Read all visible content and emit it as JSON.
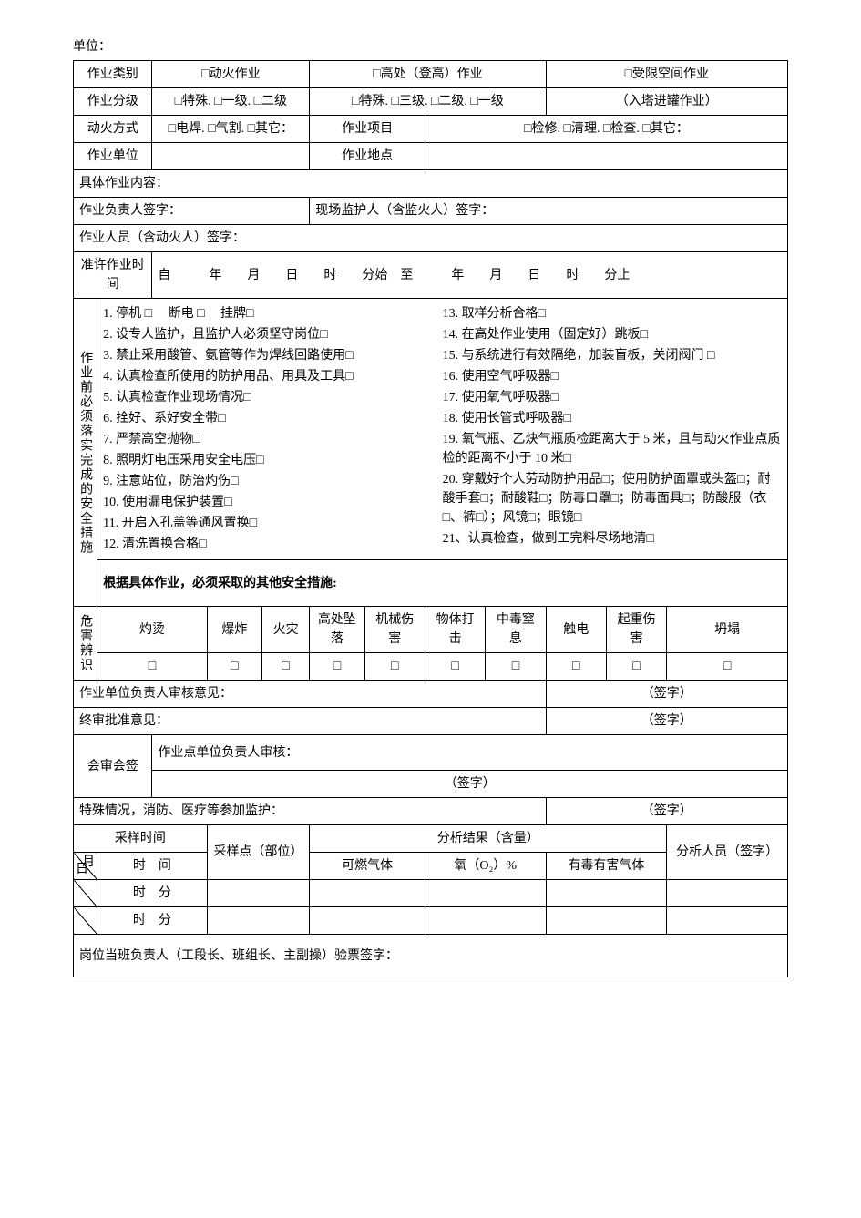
{
  "header": {
    "unit_label": "单位："
  },
  "row_type": {
    "label": "作业类别",
    "opt1": "□动火作业",
    "opt2": "□高处（登高）作业",
    "opt3": "□受限空间作业"
  },
  "row_grade": {
    "label": "作业分级",
    "opt1": "□特殊. □一级. □二级",
    "opt2": "□特殊. □三级. □二级. □一级",
    "opt3": "（入塔进罐作业）"
  },
  "row_fire": {
    "label": "动火方式",
    "opt1": "□电焊. □气割. □其它：",
    "proj_label": "作业项目",
    "proj_opts": "□检修. □清理. □检查. □其它："
  },
  "row_unit": {
    "label": "作业单位",
    "place_label": "作业地点"
  },
  "row_content": {
    "label": "具体作业内容："
  },
  "row_leader": {
    "label": "作业负责人签字：",
    "supervisor": "现场监护人（含监火人）签字："
  },
  "row_workers": {
    "label": "作业人员（含动火人）签字："
  },
  "row_time": {
    "label": "准许作业时间",
    "text": "自　　　年　　月　　日　　时　　分始　至　　　年　　月　　日　　时　　分止"
  },
  "measures": {
    "side_label": "作业前必须落实完成的安全措施",
    "left": [
      "1. 停机 □　 断电 □　 挂牌□",
      "2. 设专人监护，且监护人必须坚守岗位□",
      "3. 禁止采用酸管、氨管等作为焊线回路使用□",
      "4. 认真检查所使用的防护用品、用具及工具□",
      "5. 认真检查作业现场情况□",
      "6. 拴好、系好安全带□",
      "7. 严禁高空抛物□",
      "8. 照明灯电压采用安全电压□",
      "9. 注意站位，防治灼伤□",
      "10. 使用漏电保护装置□",
      "11. 开启入孔盖等通风置换□",
      "12. 清洗置换合格□"
    ],
    "right": [
      "13. 取样分析合格□",
      "14. 在高处作业使用（固定好）跳板□",
      "15. 与系统进行有效隔绝，加装盲板，关闭阀门 □",
      "16. 使用空气呼吸器□",
      "17. 使用氧气呼吸器□",
      "18. 使用长管式呼吸器□",
      "19. 氧气瓶、乙炔气瓶质检距离大于 5 米，且与动火作业点质检的距离不小于 10 米□",
      "20. 穿戴好个人劳动防护用品□；使用防护面罩或头盔□；耐酸手套□；耐酸鞋□；防毒口罩□；防毒面具□；防酸服（衣□、裤□）；风镜□；眼镜□",
      "21、认真检查，做到工完料尽场地清□"
    ],
    "other": "根据具体作业，必须采取的其他安全措施:"
  },
  "hazard": {
    "side_label": "危害辨识",
    "items": [
      "灼烫",
      "爆炸",
      "火灾",
      "高处坠落",
      "机械伤害",
      "物体打击",
      "中毒窒息",
      "触电",
      "起重伤害",
      "坍塌"
    ],
    "box": "□"
  },
  "approvals": {
    "unit_leader": "作业单位负责人审核意见：",
    "final": "终审批准意见：",
    "joint_side": "会审会签",
    "joint_text": "作业点单位负责人审核：",
    "special": "特殊情况，消防、医疗等参加监护：",
    "sign": "（签字）"
  },
  "sampling": {
    "time_label": "采样时间",
    "point_label": "采样点（部位）",
    "result_label": "分析结果（含量）",
    "analyst_label": "分析人员（签字）",
    "day": "日",
    "month": "月",
    "hm": "时　间",
    "combustible": "可燃气体",
    "oxygen": "氧（O₂）%",
    "toxic": "有毒有害气体",
    "hm2": "时　分"
  },
  "footer": {
    "text": "岗位当班负责人（工段长、班组长、主副操）验票签字："
  }
}
